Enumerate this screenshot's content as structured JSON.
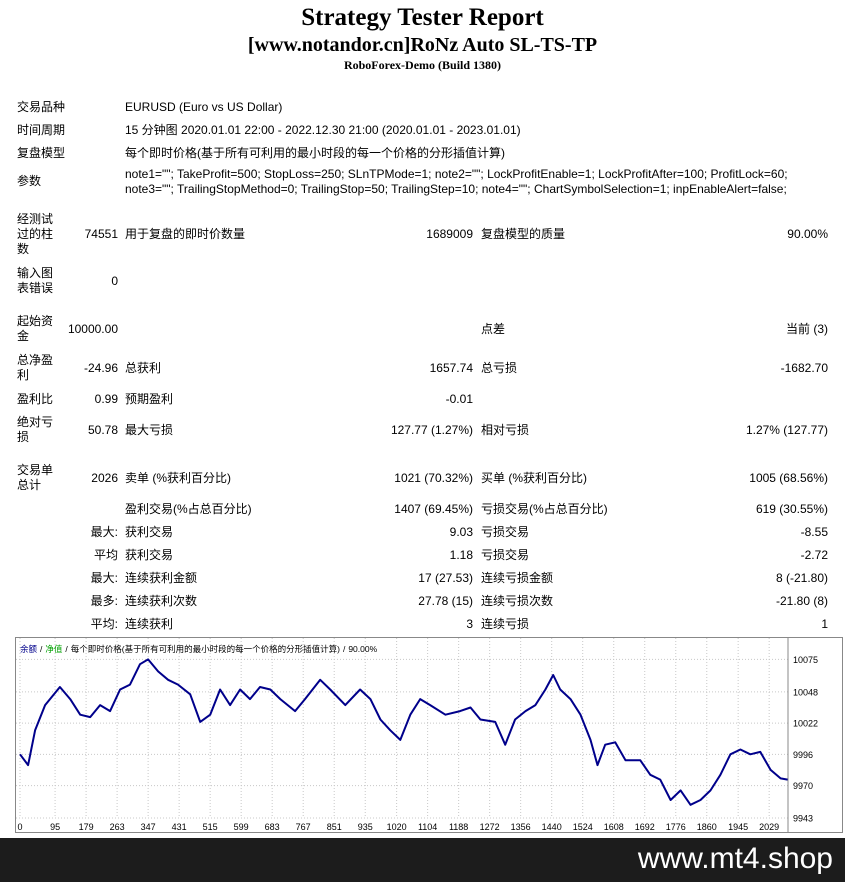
{
  "header": {
    "title": "Strategy Tester Report",
    "subtitle": "[www.notandor.cn]RoNz Auto SL-TS-TP",
    "server": "RoboForex-Demo (Build 1380)"
  },
  "settings": [
    {
      "label": "交易品种",
      "value": [
        "EURUSD (Euro vs US Dollar)"
      ]
    },
    {
      "label": "时间周期",
      "value": [
        "15 分钟图 2020.01.01 22:00 - 2022.12.30 21:00 (2020.01.01 - 2023.01.01)"
      ]
    },
    {
      "label": "复盘模型",
      "value": [
        "每个即时价格(基于所有可利用的最小时段的每一个价格的分形插值计算)"
      ]
    },
    {
      "label": "参数",
      "value": [
        "note1=\"\"; TakeProfit=500; StopLoss=250; SLnTPMode=1; note2=\"\"; LockProfitEnable=1; LockProfitAfter=100; ProfitLock=60;",
        "note3=\"\"; TrailingStopMethod=0; TrailingStop=50; TrailingStep=10; note4=\"\"; ChartSymbolSelection=1; inpEnableAlert=false;"
      ]
    }
  ],
  "results": [
    [
      "经测试过的柱数",
      "74551",
      "用于复盘的即时价数量",
      "1689009",
      "复盘模型的质量",
      "90.00%"
    ],
    [
      "输入图表错误",
      "0",
      null,
      null,
      null,
      null
    ],
    [
      "起始资金",
      "10000.00",
      null,
      null,
      "点差",
      "当前 (3)"
    ],
    [
      "总净盈利",
      "-24.96",
      "总获利",
      "1657.74",
      "总亏损",
      "-1682.70"
    ],
    [
      "盈利比",
      "0.99",
      "预期盈利",
      "-0.01",
      null,
      null
    ],
    [
      "绝对亏损",
      "50.78",
      "最大亏损",
      "127.77 (1.27%)",
      "相对亏损",
      "1.27% (127.77)"
    ],
    [
      "交易单总计",
      "2026",
      "卖单 (%获利百分比)",
      "1021 (70.32%)",
      "买单 (%获利百分比)",
      "1005 (68.56%)"
    ],
    [
      null,
      null,
      "盈利交易(%占总百分比)",
      "1407 (69.45%)",
      "亏损交易(%占总百分比)",
      "619 (30.55%)"
    ],
    [
      null,
      "最大:",
      "获利交易",
      "9.03",
      "亏损交易",
      "-8.55"
    ],
    [
      null,
      "平均",
      "获利交易",
      "1.18",
      "亏损交易",
      "-2.72"
    ],
    [
      null,
      "最大:",
      "连续获利金额",
      "17 (27.53)",
      "连续亏损金额",
      "8 (-21.80)"
    ],
    [
      null,
      "最多:",
      "连续获利次数",
      "27.78 (15)",
      "连续亏损次数",
      "-21.80 (8)"
    ],
    [
      null,
      "平均:",
      "连续获利",
      "3",
      "连续亏损",
      "1"
    ]
  ],
  "chart_data": {
    "type": "line",
    "legend_separator": "/",
    "equity": {
      "name": "净值",
      "color": "#00a000"
    },
    "model_note": "每个即时价格(基于所有可利用的最小时段的每一个价格的分形插值计算)",
    "quality": "90.00%",
    "x": [
      0,
      22,
      41,
      68,
      108,
      136,
      163,
      190,
      217,
      244,
      271,
      298,
      325,
      347,
      374,
      401,
      428,
      461,
      488,
      515,
      542,
      569,
      596,
      623,
      650,
      678,
      705,
      745,
      772,
      813,
      840,
      881,
      921,
      949,
      976,
      1003,
      1030,
      1057,
      1084,
      1111,
      1152,
      1192,
      1220,
      1247,
      1287,
      1314,
      1341,
      1369,
      1396,
      1423,
      1444,
      1463,
      1491,
      1518,
      1545,
      1564,
      1585,
      1612,
      1640,
      1680,
      1707,
      1734,
      1762,
      1789,
      1816,
      1843,
      1870,
      1897,
      1924,
      1951,
      1978,
      2005,
      2033,
      2060,
      2079
    ],
    "series": [
      {
        "name": "余额",
        "color": "#00008b",
        "values": [
          9996,
          9987,
          10016,
          10037,
          10052,
          10042,
          10029,
          10027,
          10037,
          10032,
          10050,
          10054,
          10071,
          10075,
          10065,
          10058,
          10054,
          10046,
          10023,
          10029,
          10050,
          10037,
          10050,
          10042,
          10052,
          10050,
          10042,
          10032,
          10042,
          10058,
          10050,
          10037,
          10050,
          10042,
          10025,
          10016,
          10008,
          10029,
          10042,
          10037,
          10029,
          10032,
          10035,
          10025,
          10023,
          10004,
          10025,
          10032,
          10037,
          10050,
          10062,
          10050,
          10042,
          10029,
          10008,
          9987,
          10004,
          10006,
          9991,
          9991,
          9979,
          9975,
          9958,
          9966,
          9954,
          9958,
          9966,
          9979,
          9996,
          10000,
          9996,
          9998,
          9983,
          9976,
          9975
        ]
      }
    ],
    "xlim": [
      0,
      2080
    ],
    "ylim": [
      9943,
      10087
    ],
    "xticks": [
      0,
      95,
      179,
      263,
      347,
      431,
      515,
      599,
      683,
      767,
      851,
      935,
      1020,
      1104,
      1188,
      1272,
      1356,
      1440,
      1524,
      1608,
      1692,
      1776,
      1860,
      1945,
      2029
    ],
    "yticks": [
      9943,
      9970,
      9996,
      10022,
      10048,
      10075
    ],
    "grid": true
  },
  "banner": "www.mt4.shop"
}
